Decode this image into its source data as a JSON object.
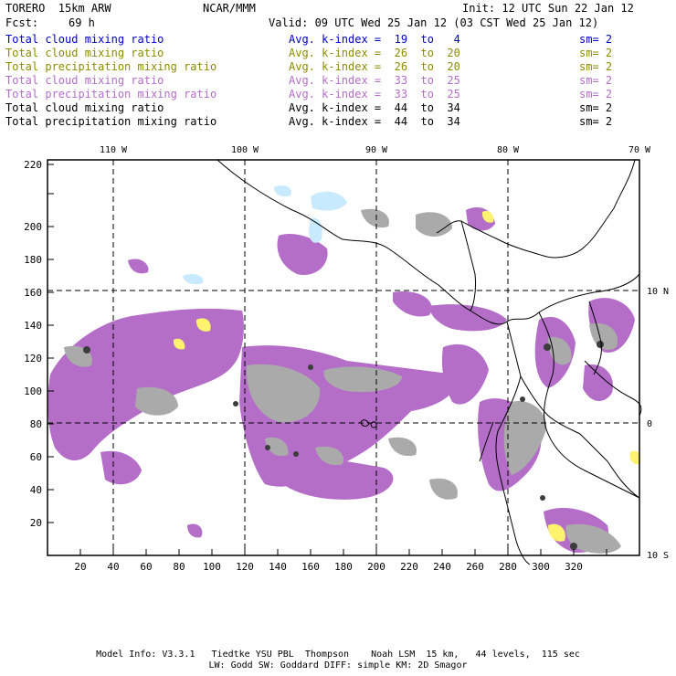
{
  "header": {
    "model_title": "TORERO  15km ARW",
    "forecast_label": "Fcst:",
    "forecast_hours": "69 h",
    "center": "NCAR/MMM",
    "init": "Init: 12 UTC Sun 22 Jan 12",
    "valid": "Valid: 09 UTC Wed 25 Jan 12 (03 CST Wed 25 Jan 12)"
  },
  "legend": [
    {
      "field": "Total cloud mixing ratio",
      "index": "Avg. k-index =  19  to   4",
      "sm": "sm= 2",
      "color": "#0000c8"
    },
    {
      "field": "Total cloud mixing ratio",
      "index": "Avg. k-index =  26  to  20",
      "sm": "sm= 2",
      "color": "#8c8c00"
    },
    {
      "field": "Total precipitation mixing ratio",
      "index": "Avg. k-index =  26  to  20",
      "sm": "sm= 2",
      "color": "#8c8c00"
    },
    {
      "field": "Total cloud mixing ratio",
      "index": "Avg. k-index =  33  to  25",
      "sm": "sm= 2",
      "color": "#b46ec8"
    },
    {
      "field": "Total precipitation mixing ratio",
      "index": "Avg. k-index =  33  to  25",
      "sm": "sm= 2",
      "color": "#b46ec8"
    },
    {
      "field": "Total cloud mixing ratio",
      "index": "Avg. k-index =  44  to  34",
      "sm": "sm= 2",
      "color": "#000000"
    },
    {
      "field": "Total precipitation mixing ratio",
      "index": "Avg. k-index =  44  to  34",
      "sm": "sm= 2",
      "color": "#000000"
    }
  ],
  "map": {
    "x_ticks": [
      "20",
      "40",
      "60",
      "80",
      "100",
      "120",
      "140",
      "160",
      "180",
      "200",
      "220",
      "240",
      "260",
      "280",
      "300",
      "320"
    ],
    "y_ticks": [
      "20",
      "40",
      "60",
      "80",
      "100",
      "120",
      "140",
      "160",
      "180",
      "200",
      "220"
    ],
    "lon_labels": [
      "110 W",
      "100 W",
      "90 W",
      "80 W",
      "70 W"
    ],
    "lat_labels": [
      "10 N",
      "0",
      "10 S"
    ],
    "colors": {
      "frame": "#000000",
      "land": "#000000",
      "cloud_light_blue": "#c8eaff",
      "cloud_yellow": "#fff26e",
      "cloud_purple": "#b46ec8",
      "cloud_gray": "#aaaaaa",
      "cloud_dark": "#3c3c3c"
    }
  },
  "footer": {
    "line1": "Model Info: V3.3.1   Tiedtke YSU PBL  Thompson    Noah LSM  15 km,   44 levels,  115 sec",
    "line2": "LW: Godd SW: Goddard DIFF: simple KM: 2D Smagor"
  }
}
